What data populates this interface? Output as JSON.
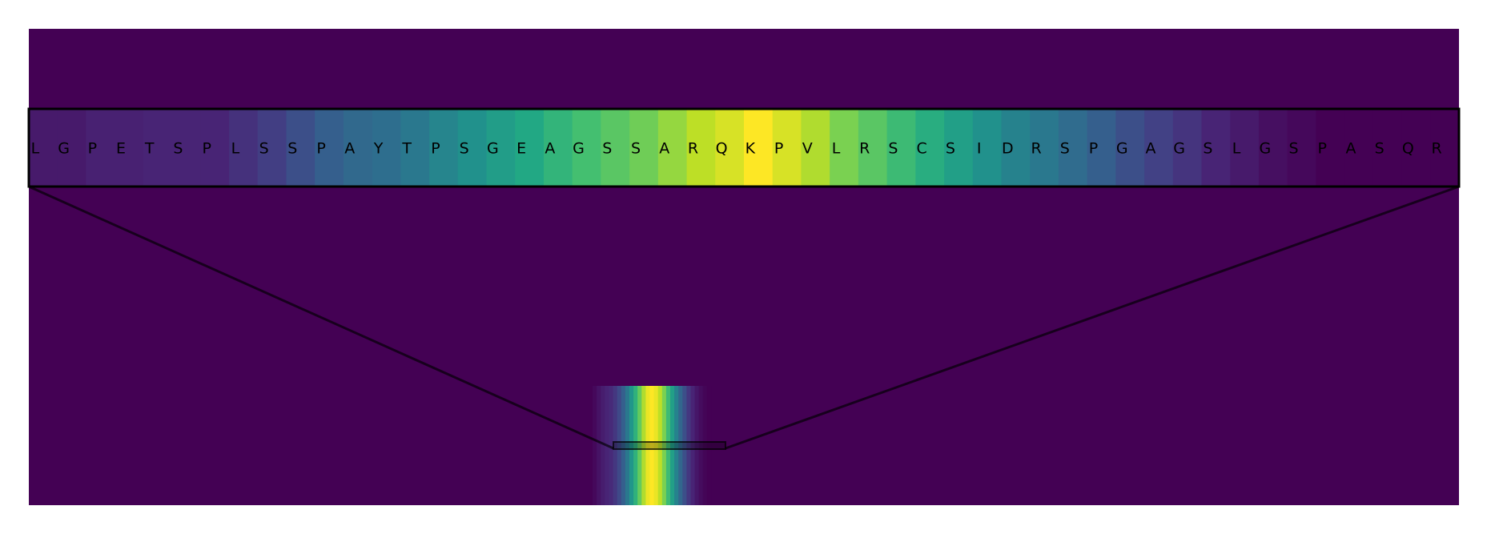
{
  "chart_data": {
    "type": "heatmap",
    "colormap": "viridis",
    "background_color": "#440154",
    "frame_color": "#000000",
    "title": "",
    "xlabel": "",
    "ylabel": "",
    "legend": "none",
    "grid": false,
    "zoom_window": {
      "sequence": [
        "L",
        "G",
        "P",
        "E",
        "T",
        "S",
        "P",
        "L",
        "S",
        "S",
        "P",
        "A",
        "Y",
        "T",
        "P",
        "S",
        "G",
        "E",
        "A",
        "G",
        "S",
        "S",
        "A",
        "R",
        "Q",
        "K",
        "P",
        "V",
        "L",
        "R",
        "S",
        "C",
        "S",
        "I",
        "D",
        "R",
        "S",
        "P",
        "G",
        "A",
        "G",
        "S",
        "L",
        "G",
        "S",
        "P",
        "A",
        "S",
        "Q",
        "R"
      ],
      "values": [
        0.07,
        0.07,
        0.09,
        0.09,
        0.1,
        0.1,
        0.1,
        0.14,
        0.18,
        0.24,
        0.3,
        0.34,
        0.36,
        0.4,
        0.45,
        0.5,
        0.55,
        0.6,
        0.65,
        0.7,
        0.74,
        0.78,
        0.84,
        0.9,
        0.94,
        1.0,
        0.94,
        0.88,
        0.8,
        0.74,
        0.68,
        0.62,
        0.56,
        0.5,
        0.44,
        0.4,
        0.35,
        0.3,
        0.24,
        0.19,
        0.15,
        0.1,
        0.07,
        0.04,
        0.02,
        0.0,
        0.0,
        0.0,
        0.0,
        0.0
      ]
    },
    "full_profile": {
      "values": [
        0.0,
        0.02,
        0.05,
        0.08,
        0.1,
        0.12,
        0.16,
        0.22,
        0.3,
        0.4,
        0.52,
        0.64,
        0.76,
        0.88,
        0.97,
        1.0,
        0.97,
        0.9,
        0.8,
        0.68,
        0.56,
        0.44,
        0.33,
        0.24,
        0.16,
        0.1,
        0.06,
        0.03,
        0.01,
        0.0
      ]
    }
  }
}
